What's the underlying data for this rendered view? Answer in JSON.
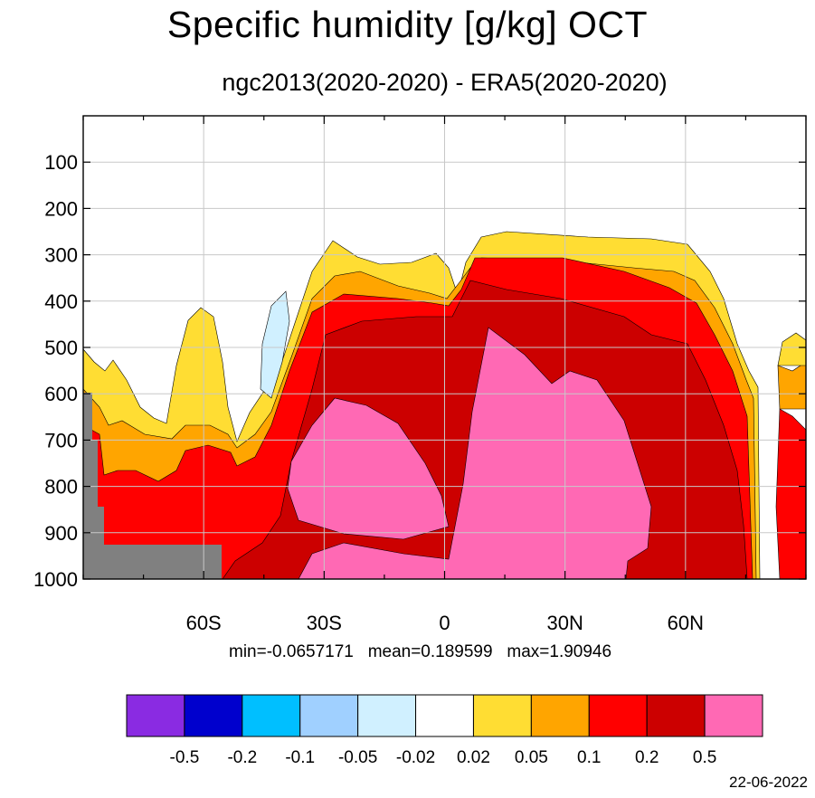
{
  "title": "Specific humidity [g/kg] OCT",
  "subtitle": "ngc2013(2020-2020) - ERA5(2020-2020)",
  "stats_text": "min=-0.0657171   mean=0.189599   max=1.90946",
  "date": "22-06-2022",
  "colors": {
    "gt_0.5": "#ff69b4",
    "0.2_0.5": "#cc0000",
    "0.1_0.2": "#ff0000",
    "0.05_0.1": "#ffa500",
    "0.02_0.05": "#ffdd33",
    "neg_0.02_0.02": "#ffffff",
    "neg_0.05_neg_0.02": "#d0f0ff",
    "missing": "#808080"
  },
  "chart_data": {
    "type": "heatmap",
    "title": "Specific humidity [g/kg] OCT",
    "subtitle": "ngc2013(2020-2020) - ERA5(2020-2020)",
    "x_axis": {
      "range": [
        -90,
        90
      ],
      "ticks": [
        -60,
        -30,
        0,
        30,
        60
      ],
      "tick_labels": [
        "60S",
        "30S",
        "0",
        "30N",
        "60N"
      ]
    },
    "y_axis": {
      "range": [
        0,
        1000
      ],
      "reversed": true,
      "ticks": [
        100,
        200,
        300,
        400,
        500,
        600,
        700,
        800,
        900,
        1000
      ],
      "tick_labels": [
        "100",
        "200",
        "300",
        "400",
        "500",
        "600",
        "700",
        "800",
        "900",
        "1000"
      ]
    },
    "grid": true,
    "colorbar": {
      "placement": "bottom",
      "level_labels": [
        "-0.5",
        "-0.2",
        "-0.1",
        "-0.05",
        "-0.02",
        "0.02",
        "0.05",
        "0.1",
        "0.2",
        "0.5"
      ],
      "colors": [
        "#8a2be2",
        "#0000cd",
        "#00bfff",
        "#a0d0ff",
        "#d0f0ff",
        "#ffffff",
        "#ffdd33",
        "#ffa500",
        "#ff0000",
        "#cc0000",
        "#ff69b4"
      ]
    },
    "stats": {
      "min": -0.0657171,
      "mean": 0.189599,
      "max": 1.90946
    }
  }
}
